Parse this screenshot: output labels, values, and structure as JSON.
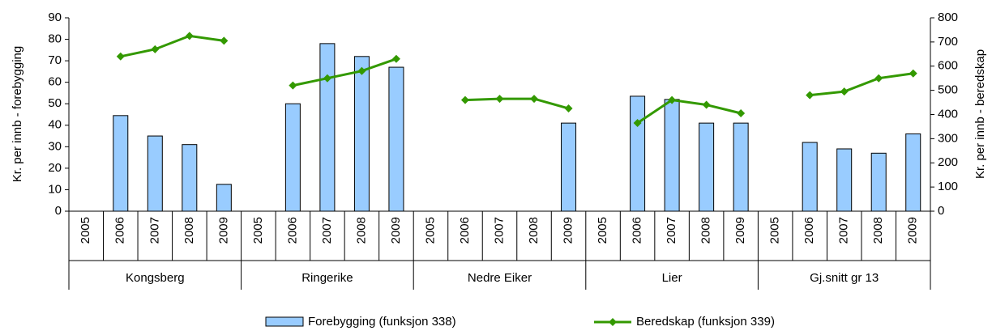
{
  "chart_data": {
    "type": "bar",
    "categories": [
      "2005",
      "2006",
      "2007",
      "2008",
      "2009",
      "2005",
      "2006",
      "2007",
      "2008",
      "2009",
      "2005",
      "2006",
      "2007",
      "2008",
      "2009",
      "2005",
      "2006",
      "2007",
      "2008",
      "2009",
      "2005",
      "2006",
      "2007",
      "2008",
      "2009"
    ],
    "groups": [
      "Kongsberg",
      "Ringerike",
      "Nedre Eiker",
      "Lier",
      "Gj.snitt gr 13"
    ],
    "series": [
      {
        "name": "Forebygging (funksjon 338)",
        "type": "bar",
        "color": "#99ccff",
        "values": [
          null,
          44.5,
          35,
          31,
          12.5,
          null,
          50,
          78,
          72,
          67,
          null,
          null,
          null,
          null,
          41,
          null,
          53.5,
          52,
          41,
          41,
          null,
          32,
          29,
          27,
          36
        ]
      },
      {
        "name": "Beredskap (funksjon 339)",
        "type": "line",
        "axis": "y2",
        "color": "#339900",
        "values": [
          null,
          640,
          670,
          725,
          705,
          null,
          520,
          550,
          580,
          630,
          null,
          460,
          465,
          465,
          425,
          null,
          365,
          460,
          440,
          405,
          null,
          480,
          495,
          550,
          570
        ]
      }
    ],
    "ylabel": "Kr. per innb - forebygging",
    "y2label": "Kr. per innb - beredskap",
    "ylim": [
      0,
      90
    ],
    "yticks": [
      0,
      10,
      20,
      30,
      40,
      50,
      60,
      70,
      80,
      90
    ],
    "y2lim": [
      0,
      800
    ],
    "y2ticks": [
      0,
      100,
      200,
      300,
      400,
      500,
      600,
      700,
      800
    ]
  }
}
